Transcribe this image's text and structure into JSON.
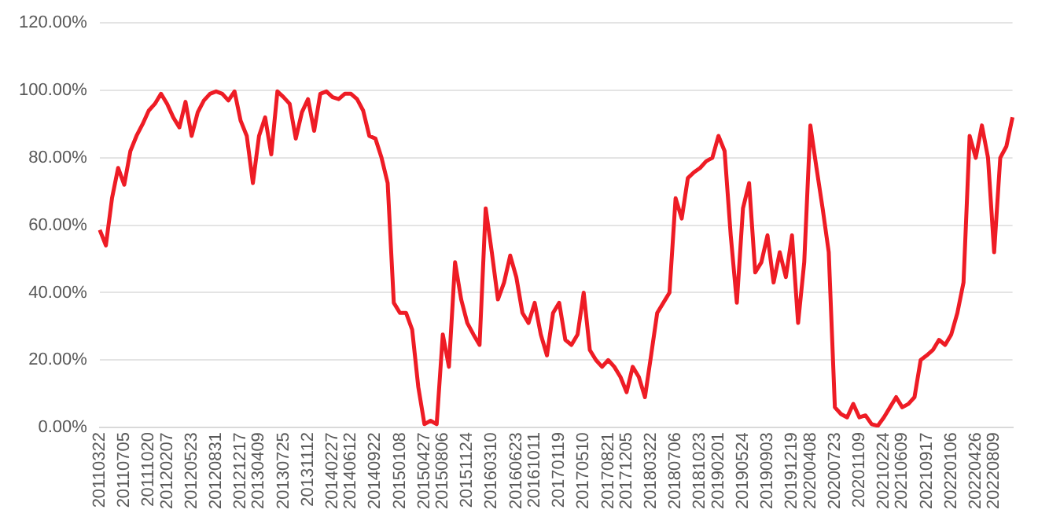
{
  "chart_data": {
    "type": "line",
    "categories": [
      "20110322",
      null,
      null,
      null,
      "20110705",
      null,
      null,
      null,
      "20111020",
      null,
      null,
      "20120207",
      null,
      null,
      null,
      "20120523",
      null,
      null,
      null,
      "20120831",
      null,
      null,
      null,
      "20121217",
      null,
      null,
      "20130409",
      null,
      null,
      null,
      "20130725",
      null,
      null,
      null,
      "20131112",
      null,
      null,
      null,
      "20140227",
      null,
      null,
      "20140612",
      null,
      null,
      null,
      "20140922",
      null,
      null,
      null,
      "20150108",
      null,
      null,
      null,
      "20150427",
      null,
      null,
      "20150806",
      null,
      null,
      null,
      "20151124",
      null,
      null,
      null,
      "20160310",
      null,
      null,
      null,
      "20160623",
      null,
      null,
      "20161011",
      null,
      null,
      null,
      "20170119",
      null,
      null,
      null,
      "20170510",
      null,
      null,
      null,
      "20170821",
      null,
      null,
      "20171205",
      null,
      null,
      null,
      "20180322",
      null,
      null,
      null,
      "20180706",
      null,
      null,
      null,
      "20181023",
      null,
      null,
      "20190201",
      null,
      null,
      null,
      "20190524",
      null,
      null,
      null,
      "20190903",
      null,
      null,
      null,
      "20191219",
      null,
      null,
      "20200408",
      null,
      null,
      null,
      "20200723",
      null,
      null,
      null,
      "20201109",
      null,
      null,
      null,
      "20210224",
      null,
      null,
      "20210609",
      null,
      null,
      null,
      "20210917",
      null,
      null,
      null,
      "20220106",
      null,
      null,
      null,
      "20220426",
      null,
      null,
      "20220809",
      null,
      null,
      null
    ],
    "series": [
      {
        "color": "#ee1c25",
        "values": [
          58.6,
          54,
          68,
          77,
          72,
          82,
          86.5,
          90,
          94,
          96,
          99,
          96,
          92,
          89,
          96.6,
          86.5,
          93.5,
          97,
          99,
          99.7,
          99,
          97,
          99.7,
          91,
          86.5,
          72.5,
          86.5,
          92,
          81,
          99.7,
          98,
          96,
          85.7,
          93.5,
          97.4,
          88,
          99,
          99.7,
          98,
          97.4,
          99,
          99,
          97.4,
          94,
          86.5,
          85.7,
          80,
          72.5,
          37,
          34,
          34,
          29,
          12,
          1,
          2,
          1,
          27.6,
          18,
          49,
          38,
          31,
          27.6,
          24.5,
          65,
          52,
          38,
          43,
          51,
          44.6,
          34,
          31,
          37,
          27.6,
          21.4,
          34,
          37,
          26,
          24.5,
          27.6,
          40,
          23,
          20,
          18,
          20,
          18,
          15,
          10.5,
          18,
          15,
          9,
          21.4,
          34,
          37,
          40,
          68,
          62,
          74,
          75.7,
          77,
          79,
          80,
          86.5,
          82,
          57,
          37,
          65,
          72.5,
          46,
          49,
          57,
          43,
          52,
          44.6,
          57,
          31,
          49,
          89.6,
          77,
          65,
          52,
          6,
          4,
          3,
          7,
          3,
          3.6,
          1,
          0.5,
          3,
          6,
          9,
          6,
          7,
          9,
          20,
          21.4,
          23,
          26,
          24.5,
          27.6,
          34,
          43,
          86.5,
          80,
          89.6,
          80,
          52,
          80,
          83.4,
          92
        ]
      }
    ],
    "ylim": [
      0,
      120
    ],
    "yticks": [
      {
        "value": 0,
        "label": "0.00%"
      },
      {
        "value": 20,
        "label": "20.00%"
      },
      {
        "value": 40,
        "label": "40.00%"
      },
      {
        "value": 60,
        "label": "60.00%"
      },
      {
        "value": 80,
        "label": "80.00%"
      },
      {
        "value": 100,
        "label": "100.00%"
      },
      {
        "value": 120,
        "label": "120.00%"
      }
    ],
    "grid": "y",
    "legend": false,
    "marker": "none",
    "line_style": "solid"
  }
}
